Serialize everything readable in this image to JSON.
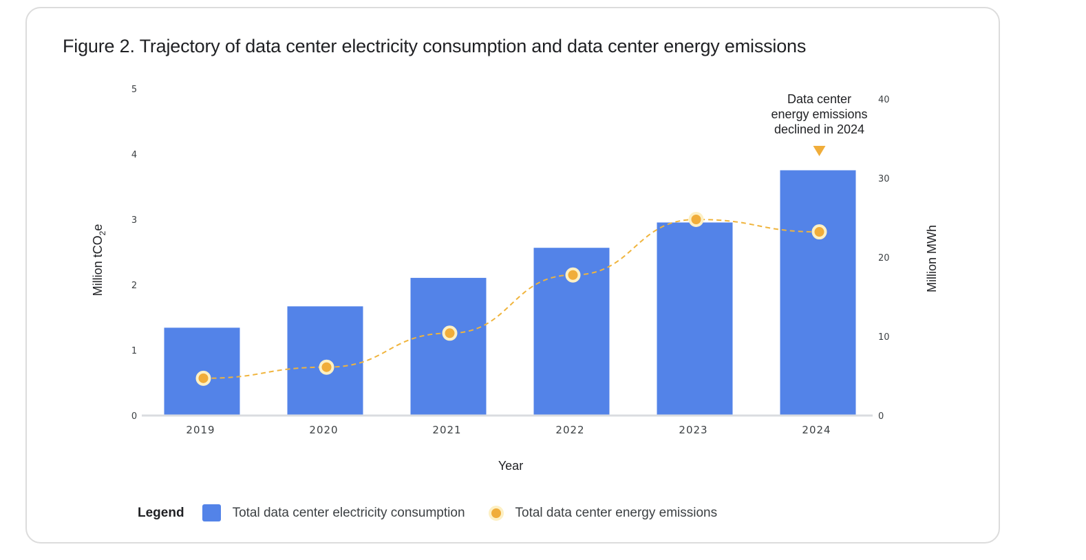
{
  "title": "Figure 2. Trajectory of data center electricity consumption and data center energy emissions",
  "chart_data": {
    "type": "bar+line",
    "title": "Figure 2. Trajectory of data center electricity consumption and data center energy emissions",
    "xlabel": "Year",
    "ylabel_left": "Million tCO2e",
    "ylabel_right": "Million MWh",
    "categories": [
      "2019",
      "2020",
      "2021",
      "2022",
      "2023",
      "2024"
    ],
    "left_axis": {
      "ylim": [
        0,
        5
      ],
      "ticks": [
        "0",
        "1",
        "2",
        "3",
        "4",
        "5"
      ]
    },
    "right_axis": {
      "ylim": [
        0,
        40
      ],
      "ticks": [
        "0",
        "10",
        "20",
        "30",
        "40"
      ]
    },
    "series": [
      {
        "name": "Total data center electricity consumption",
        "type": "bar",
        "axis": "right",
        "color": "#5383e8",
        "values": [
          11.1,
          13.8,
          17.4,
          21.2,
          24.4,
          31.0
        ]
      },
      {
        "name": "Total data center energy emissions",
        "type": "line",
        "axis": "left",
        "style": "dashed",
        "color": "#f0ad3a",
        "values": [
          0.57,
          0.74,
          1.26,
          2.15,
          3.0,
          2.81
        ]
      }
    ],
    "annotation": {
      "lines": [
        "Data center",
        "energy emissions",
        "declined in 2024"
      ],
      "category": "2024"
    },
    "grid": false,
    "legend": {
      "title": "Legend",
      "position": "bottom-left"
    }
  }
}
